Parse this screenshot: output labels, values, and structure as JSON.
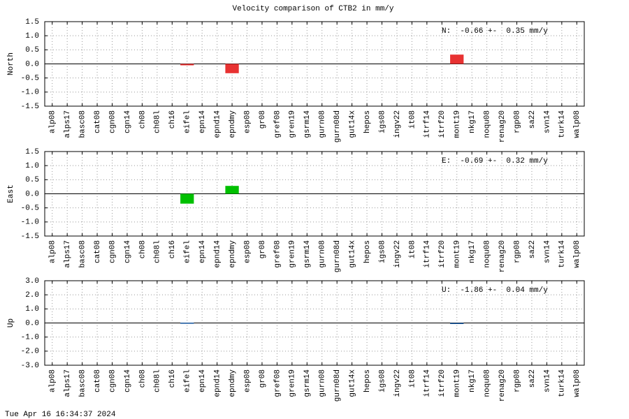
{
  "title": "Velocity comparison of CTB2 in mm/y",
  "timestamp": "Tue Apr 16 16:34:37 2024",
  "chart_data": [
    {
      "type": "bar",
      "ylabel": "North",
      "annotation": "N:  -0.66 +-  0.35 mm/y",
      "color": "#e83232",
      "grid": true,
      "categories": [
        "alp08",
        "alps17",
        "basc08",
        "cat08",
        "cgn08",
        "cgn14",
        "ch08",
        "ch08l",
        "ch16",
        "eifel",
        "epn14",
        "epnd14",
        "epndmy",
        "esp08",
        "gr08",
        "gref08",
        "gren19",
        "gsrm14",
        "gurn08",
        "gurn08d",
        "gut14x",
        "hepos",
        "igs08",
        "ingv22",
        "it08",
        "itrf14",
        "itrf20",
        "mont19",
        "nkg17",
        "noqu08",
        "renag20",
        "rgp08",
        "sa22",
        "svn14",
        "turk14",
        "walp08"
      ],
      "values": [
        null,
        null,
        null,
        null,
        null,
        null,
        null,
        null,
        null,
        -0.05,
        null,
        null,
        -0.33,
        null,
        null,
        null,
        null,
        null,
        null,
        null,
        null,
        null,
        null,
        null,
        null,
        null,
        null,
        0.33,
        null,
        null,
        null,
        null,
        null,
        null,
        null,
        null
      ],
      "ylim": [
        -1.5,
        1.5
      ],
      "yticks": [
        -1.5,
        {
          "value": -1,
          "label": "-1.0"
        },
        -0.5,
        {
          "value": 0,
          "label": "0.0"
        },
        0.5,
        {
          "value": 1,
          "label": "1.0"
        },
        1.5
      ]
    },
    {
      "type": "bar",
      "ylabel": "East",
      "annotation": "E:  -0.69 +-  0.32 mm/y",
      "color": "#00c000",
      "grid": true,
      "categories": [
        "alp08",
        "alps17",
        "basc08",
        "cat08",
        "cgn08",
        "cgn14",
        "ch08",
        "ch08l",
        "ch16",
        "eifel",
        "epn14",
        "epnd14",
        "epndmy",
        "esp08",
        "gr08",
        "gref08",
        "gren19",
        "gsrm14",
        "gurn08",
        "gurn08d",
        "gut14x",
        "hepos",
        "igs08",
        "ingv22",
        "it08",
        "itrf14",
        "itrf20",
        "mont19",
        "nkg17",
        "noqu08",
        "renag20",
        "rgp08",
        "sa22",
        "svn14",
        "turk14",
        "walp08"
      ],
      "values": [
        null,
        null,
        null,
        null,
        null,
        null,
        null,
        null,
        null,
        -0.35,
        null,
        null,
        0.28,
        null,
        null,
        null,
        null,
        null,
        null,
        null,
        null,
        null,
        null,
        null,
        null,
        null,
        null,
        null,
        null,
        null,
        null,
        null,
        null,
        null,
        null,
        null
      ],
      "ylim": [
        -1.5,
        1.5
      ],
      "yticks": [
        -1.5,
        {
          "value": -1,
          "label": "-1.0"
        },
        -0.5,
        {
          "value": 0,
          "label": "0.0"
        },
        0.5,
        {
          "value": 1,
          "label": "1.0"
        },
        1.5
      ]
    },
    {
      "type": "bar",
      "ylabel": "Up",
      "annotation": "U:  -1.86 +-  0.04 mm/y",
      "color": "#1f5fa8",
      "grid": true,
      "categories": [
        "alp08",
        "alps17",
        "basc08",
        "cat08",
        "cgn08",
        "cgn14",
        "ch08",
        "ch08l",
        "ch16",
        "eifel",
        "epn14",
        "epnd14",
        "epndmy",
        "esp08",
        "gr08",
        "gref08",
        "gren19",
        "gsrm14",
        "gurn08",
        "gurn08d",
        "gut14x",
        "hepos",
        "igs08",
        "ingv22",
        "it08",
        "itrf14",
        "itrf20",
        "mont19",
        "nkg17",
        "noqu08",
        "renag20",
        "rgp08",
        "sa22",
        "svn14",
        "turk14",
        "walp08"
      ],
      "values": [
        null,
        null,
        null,
        null,
        null,
        null,
        null,
        null,
        null,
        0.02,
        null,
        null,
        null,
        null,
        null,
        null,
        null,
        null,
        null,
        null,
        null,
        null,
        null,
        null,
        null,
        null,
        null,
        -0.03,
        null,
        null,
        null,
        null,
        null,
        null,
        null,
        null
      ],
      "ylim": [
        -3,
        3
      ],
      "yticks": [
        {
          "value": -3,
          "label": "-3.0"
        },
        {
          "value": -2,
          "label": "-2.0"
        },
        {
          "value": -1,
          "label": "-1.0"
        },
        {
          "value": 0,
          "label": "0.0"
        },
        {
          "value": 1,
          "label": "1.0"
        },
        {
          "value": 2,
          "label": "2.0"
        },
        {
          "value": 3,
          "label": "3.0"
        }
      ]
    }
  ]
}
